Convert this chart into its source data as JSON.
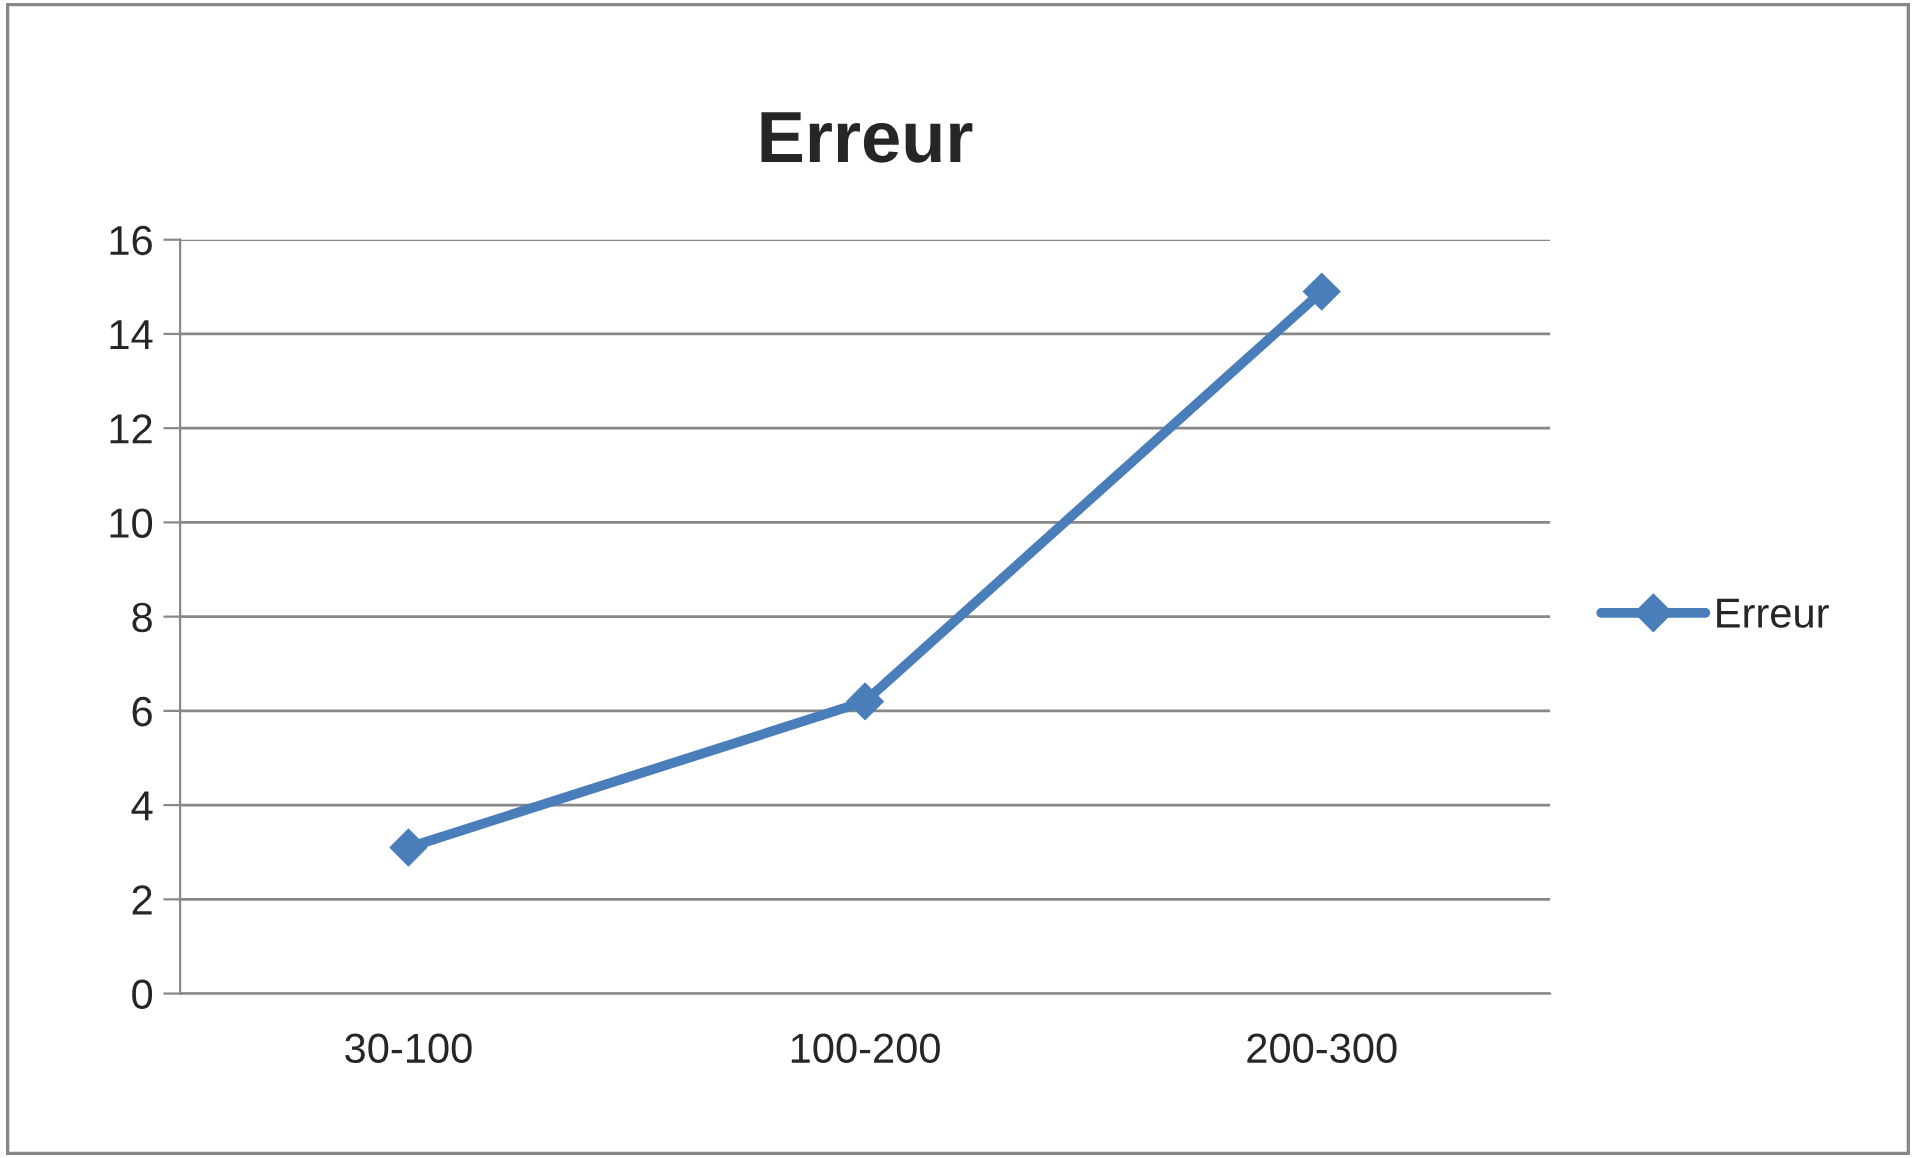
{
  "chart_data": {
    "type": "line",
    "title": "Erreur",
    "categories": [
      "30-100",
      "100-200",
      "200-300"
    ],
    "series": [
      {
        "name": "Erreur",
        "color": "#4a7ebb",
        "values": [
          3.1,
          6.2,
          14.9
        ]
      }
    ],
    "ylim": [
      0,
      16
    ],
    "yticks": [
      0,
      2,
      4,
      6,
      8,
      10,
      12,
      14,
      16
    ],
    "grid": "y",
    "legend": "right",
    "marker": "diamond",
    "line_style": "solid"
  }
}
